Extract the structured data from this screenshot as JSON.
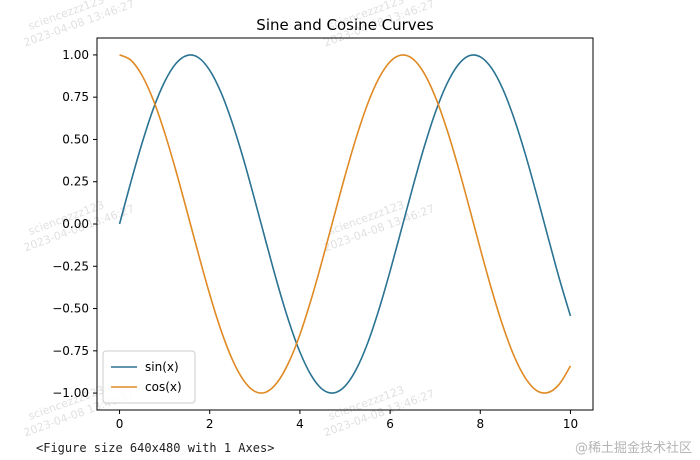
{
  "chart_data": {
    "type": "line",
    "title": "Sine and Cosine Curves",
    "xlabel": "",
    "ylabel": "",
    "xlim": [
      -0.5,
      10.5
    ],
    "ylim": [
      -1.1,
      1.1
    ],
    "x_ticks": [
      0,
      2,
      4,
      6,
      8,
      10
    ],
    "x_tick_labels": [
      "0",
      "2",
      "4",
      "6",
      "8",
      "10"
    ],
    "y_ticks": [
      1.0,
      0.75,
      0.5,
      0.25,
      0.0,
      -0.25,
      -0.5,
      -0.75,
      -1.0
    ],
    "y_tick_labels": [
      "1.00",
      "0.75",
      "0.50",
      "0.25",
      "0.00",
      "−0.25",
      "−0.50",
      "−0.75",
      "−1.00"
    ],
    "grid": false,
    "legend_position": "lower-left",
    "x": [
      0,
      0.25,
      0.5,
      0.75,
      1,
      1.25,
      1.5,
      1.75,
      2,
      2.25,
      2.5,
      2.75,
      3,
      3.25,
      3.5,
      3.75,
      4,
      4.25,
      4.5,
      4.75,
      5,
      5.25,
      5.5,
      5.75,
      6,
      6.25,
      6.5,
      6.75,
      7,
      7.25,
      7.5,
      7.75,
      8,
      8.25,
      8.5,
      8.75,
      9,
      9.25,
      9.5,
      9.75,
      10
    ],
    "series": [
      {
        "name": "sin(x)",
        "color": "#2a7392",
        "values": [
          0,
          0.247,
          0.479,
          0.682,
          0.841,
          0.949,
          0.997,
          0.984,
          0.909,
          0.778,
          0.598,
          0.382,
          0.141,
          -0.108,
          -0.351,
          -0.572,
          -0.757,
          -0.895,
          -0.978,
          -0.999,
          -0.959,
          -0.859,
          -0.706,
          -0.508,
          -0.279,
          -0.033,
          0.215,
          0.45,
          0.657,
          0.823,
          0.938,
          0.995,
          0.989,
          0.922,
          0.798,
          0.624,
          0.412,
          0.174,
          -0.075,
          -0.32,
          -0.544
        ]
      },
      {
        "name": "cos(x)",
        "color": "#e08a24",
        "values": [
          1,
          0.969,
          0.878,
          0.732,
          0.54,
          0.315,
          0.071,
          -0.178,
          -0.416,
          -0.628,
          -0.801,
          -0.924,
          -0.99,
          -0.994,
          -0.936,
          -0.82,
          -0.654,
          -0.446,
          -0.211,
          0.038,
          0.284,
          0.512,
          0.709,
          0.861,
          0.96,
          0.999,
          0.977,
          0.894,
          0.754,
          0.568,
          0.347,
          0.104,
          -0.146,
          -0.386,
          -0.602,
          -0.781,
          -0.911,
          -0.985,
          -0.997,
          -0.948,
          -0.839
        ]
      }
    ]
  },
  "figure_caption": "<Figure size 640x480 with 1 Axes>",
  "watermark_user": "sciencezzz123",
  "watermark_time": "2023-04-08 13:46:27",
  "brand": "@稀土掘金技术社区"
}
